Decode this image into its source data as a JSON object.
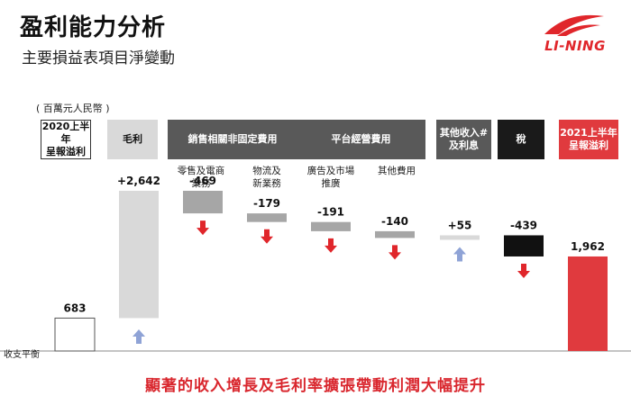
{
  "page": {
    "title": "盈利能力分析",
    "subtitle": "主要損益表項目淨變動",
    "unit": "( 百萬元人民幣 )",
    "baseline_label": "收支平衡",
    "footer": "顯著的收入增長及毛利率擴張帶動利潤大幅提升",
    "logo_text": "LI-NING"
  },
  "headers": [
    {
      "label": "2020上半年\n呈報溢利",
      "style": "outline"
    },
    {
      "label": "毛利",
      "style": "light"
    },
    {
      "label": "銷售相關非固定費用",
      "style": "dark"
    },
    {
      "label": "平台經營費用",
      "style": "dark"
    },
    {
      "label": "其他收入#\n及利息",
      "style": "dark"
    },
    {
      "label": "稅",
      "style": "black"
    },
    {
      "label": "2021上半年\n呈報溢利",
      "style": "red"
    }
  ],
  "subheaders": [
    "零售及電商\n業務",
    "物流及\n新業務",
    "廣告及市場\n推廣",
    "其他費用"
  ],
  "colors": {
    "increase": "#d9d9d9",
    "decrease": "#a6a6a6",
    "tax": "#111111",
    "total_start": "#ffffff",
    "total_end": "#e03a3e",
    "arrow_down": "#e0262b",
    "arrow_up": "#8fa3d6",
    "header_dark": "#595959",
    "header_light": "#d9d9d9",
    "header_black": "#1a1a1a",
    "header_red": "#e03a3e"
  },
  "chart_data": {
    "type": "bar",
    "subtype": "waterfall",
    "title": "盈利能力分析",
    "subtitle": "主要損益表項目淨變動",
    "unit": "百萬元人民幣",
    "categories": [
      "2020上半年呈報溢利",
      "毛利",
      "零售及電商業務",
      "物流及新業務",
      "廣告及市場推廣",
      "其他費用",
      "其他收入及利息",
      "稅",
      "2021上半年呈報溢利"
    ],
    "values": [
      683,
      2642,
      -469,
      -179,
      -191,
      -140,
      55,
      -439,
      1962
    ],
    "labels": [
      "683",
      "+2,642",
      "-469",
      "-179",
      "-191",
      "-140",
      "+55",
      "-439",
      "1,962"
    ],
    "kinds": [
      "total",
      "change",
      "change",
      "change",
      "change",
      "change",
      "change",
      "change",
      "total"
    ],
    "arrows": [
      "",
      "up",
      "down",
      "down",
      "down",
      "down",
      "up",
      "down",
      ""
    ],
    "grid": false,
    "legend": "none"
  }
}
